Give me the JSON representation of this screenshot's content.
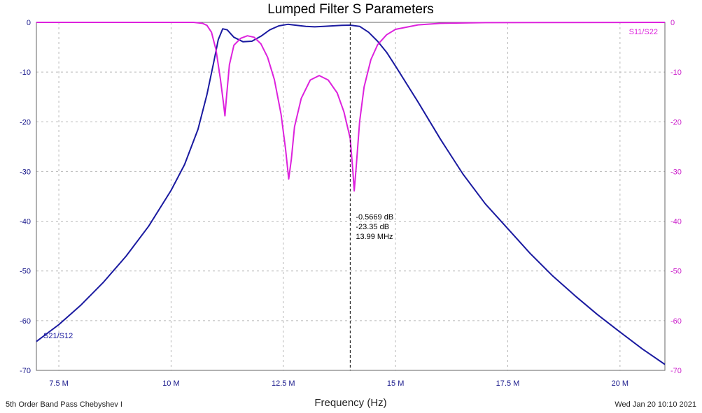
{
  "chart_data": {
    "type": "line",
    "title": "Lumped Filter S Parameters",
    "xlabel": "Frequency (Hz)",
    "ylabel": "",
    "xlim": [
      7000000,
      21000000
    ],
    "ylim": [
      -70,
      0
    ],
    "grid": true,
    "x_ticks": [
      {
        "value": 7500000,
        "label": "7.5 M"
      },
      {
        "value": 10000000,
        "label": "10 M"
      },
      {
        "value": 12500000,
        "label": "12.5 M"
      },
      {
        "value": 15000000,
        "label": "15 M"
      },
      {
        "value": 17500000,
        "label": "17.5 M"
      },
      {
        "value": 20000000,
        "label": "20 M"
      }
    ],
    "y_ticks_left": [
      "0",
      "-10",
      "-20",
      "-30",
      "-40",
      "-50",
      "-60",
      "-70"
    ],
    "y_ticks_right": [
      "0",
      "-10",
      "-20",
      "-30",
      "-40",
      "-50",
      "-60",
      "-70"
    ],
    "series": [
      {
        "name": "S21/S12",
        "color": "#1a1aa0",
        "points": [
          [
            7000000,
            -64.2
          ],
          [
            7500000,
            -60.8
          ],
          [
            8000000,
            -56.8
          ],
          [
            8500000,
            -52.2
          ],
          [
            9000000,
            -47.0
          ],
          [
            9500000,
            -41.0
          ],
          [
            10000000,
            -33.8
          ],
          [
            10300000,
            -28.6
          ],
          [
            10600000,
            -21.5
          ],
          [
            10800000,
            -14.5
          ],
          [
            10950000,
            -8.0
          ],
          [
            11050000,
            -3.5
          ],
          [
            11150000,
            -1.3
          ],
          [
            11250000,
            -1.5
          ],
          [
            11400000,
            -3.0
          ],
          [
            11600000,
            -3.9
          ],
          [
            11800000,
            -3.8
          ],
          [
            12000000,
            -2.8
          ],
          [
            12200000,
            -1.5
          ],
          [
            12400000,
            -0.7
          ],
          [
            12600000,
            -0.4
          ],
          [
            12800000,
            -0.6
          ],
          [
            13000000,
            -0.8
          ],
          [
            13200000,
            -0.9
          ],
          [
            13400000,
            -0.8
          ],
          [
            13600000,
            -0.7
          ],
          [
            13800000,
            -0.6
          ],
          [
            13990000,
            -0.5669
          ],
          [
            14200000,
            -0.8
          ],
          [
            14400000,
            -2.0
          ],
          [
            14600000,
            -3.8
          ],
          [
            14800000,
            -6.0
          ],
          [
            15000000,
            -8.8
          ],
          [
            15500000,
            -16.0
          ],
          [
            16000000,
            -23.5
          ],
          [
            16500000,
            -30.5
          ],
          [
            17000000,
            -36.5
          ],
          [
            17500000,
            -41.5
          ],
          [
            18000000,
            -46.5
          ],
          [
            18500000,
            -51.0
          ],
          [
            19000000,
            -55.0
          ],
          [
            19500000,
            -58.8
          ],
          [
            20000000,
            -62.3
          ],
          [
            20500000,
            -65.7
          ],
          [
            21000000,
            -68.8
          ]
        ]
      },
      {
        "name": "S11/S22",
        "color": "#dd22dd",
        "points": [
          [
            7000000,
            0.0
          ],
          [
            10500000,
            0.0
          ],
          [
            10700000,
            -0.2
          ],
          [
            10800000,
            -0.6
          ],
          [
            10900000,
            -2.0
          ],
          [
            11000000,
            -5.5
          ],
          [
            11100000,
            -11.5
          ],
          [
            11170000,
            -16.5
          ],
          [
            11200000,
            -18.8
          ],
          [
            11230000,
            -15.5
          ],
          [
            11300000,
            -8.5
          ],
          [
            11400000,
            -4.6
          ],
          [
            11550000,
            -3.2
          ],
          [
            11700000,
            -2.7
          ],
          [
            11850000,
            -3.0
          ],
          [
            12000000,
            -4.3
          ],
          [
            12150000,
            -7.0
          ],
          [
            12300000,
            -11.5
          ],
          [
            12450000,
            -18.5
          ],
          [
            12550000,
            -25.5
          ],
          [
            12620000,
            -31.5
          ],
          [
            12680000,
            -27.5
          ],
          [
            12750000,
            -21.0
          ],
          [
            12900000,
            -15.3
          ],
          [
            13100000,
            -11.6
          ],
          [
            13300000,
            -10.7
          ],
          [
            13500000,
            -11.6
          ],
          [
            13700000,
            -14.2
          ],
          [
            13850000,
            -18.0
          ],
          [
            13990000,
            -23.35
          ],
          [
            14050000,
            -30.0
          ],
          [
            14080000,
            -33.9
          ],
          [
            14120000,
            -29.5
          ],
          [
            14200000,
            -20.0
          ],
          [
            14300000,
            -13.0
          ],
          [
            14450000,
            -7.5
          ],
          [
            14600000,
            -4.5
          ],
          [
            14800000,
            -2.5
          ],
          [
            15000000,
            -1.4
          ],
          [
            15500000,
            -0.5
          ],
          [
            16000000,
            -0.2
          ],
          [
            17000000,
            -0.05
          ],
          [
            21000000,
            0.0
          ]
        ]
      }
    ],
    "cursor": {
      "x": 13990000,
      "lines": [
        "-0.5669 dB",
        "-23.35 dB",
        "13.99 MHz"
      ]
    }
  },
  "footer": {
    "left": "5th Order Band Pass Chebyshev I",
    "right": "Wed Jan 20 10:10 2021"
  }
}
